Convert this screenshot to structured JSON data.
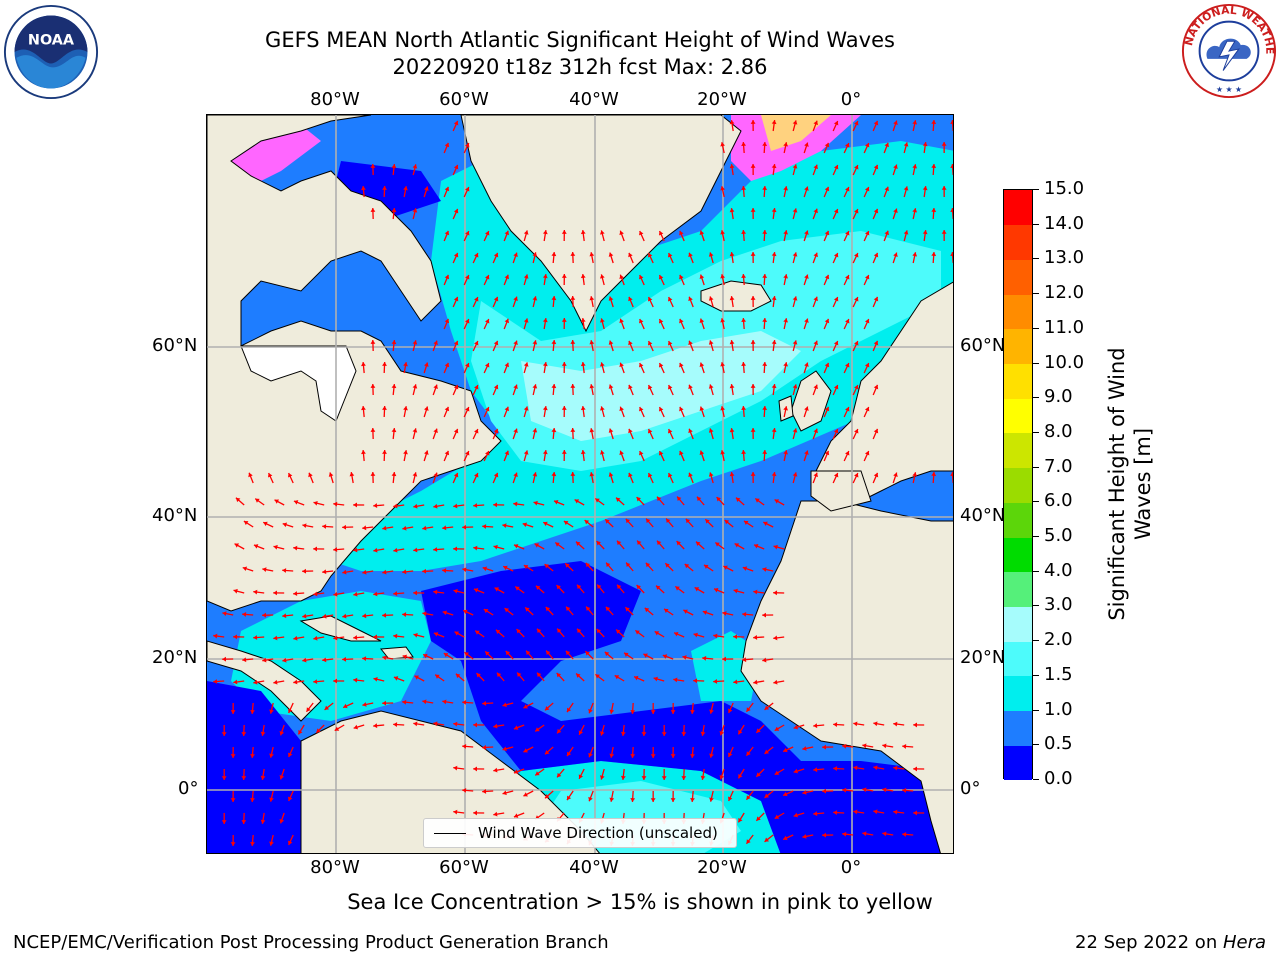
{
  "header": {
    "title_line1": "GEFS MEAN North Atlantic Significant Height of Wind Waves",
    "title_line2": "20220920 t18z 312h fcst   Max: 2.86"
  },
  "logos": {
    "left": {
      "name": "noaa-logo",
      "text": "NOAA"
    },
    "right": {
      "name": "nws-logo",
      "text": "NATIONAL WEATHER SERVICE"
    }
  },
  "map": {
    "lon_labels": [
      "80°W",
      "60°W",
      "40°W",
      "20°W",
      "0°"
    ],
    "lat_labels": [
      "60°N",
      "40°N",
      "20°N",
      "0°"
    ],
    "legend": "Wind Wave Direction (unscaled)",
    "land_color": "#efecdc",
    "arrow_color": "#ff0000"
  },
  "colorbar": {
    "title": "Significant Height of Wind Waves [m]",
    "title_lines": [
      "Significant Height of Wind",
      "Waves [m]"
    ],
    "ticks": [
      "0.0",
      "0.5",
      "1.0",
      "1.5",
      "2.0",
      "3.0",
      "4.0",
      "5.0",
      "6.0",
      "7.0",
      "8.0",
      "9.0",
      "10.0",
      "11.0",
      "12.0",
      "13.0",
      "14.0",
      "15.0"
    ],
    "colors": [
      "#0000ff",
      "#1e7dff",
      "#00eeee",
      "#4dfbfb",
      "#a6fcfc",
      "#55f07a",
      "#00dc00",
      "#5cd60a",
      "#9bdc00",
      "#cce600",
      "#ffff00",
      "#ffe000",
      "#ffb400",
      "#ff8c00",
      "#ff6000",
      "#ff3800",
      "#ff0000"
    ]
  },
  "caption": "Sea Ice Concentration > 15% is shown in pink to yellow",
  "footer": {
    "left": "NCEP/EMC/Verification Post Processing Product Generation Branch",
    "right_prefix": "22 Sep 2022 on ",
    "right_host": "Hera"
  }
}
